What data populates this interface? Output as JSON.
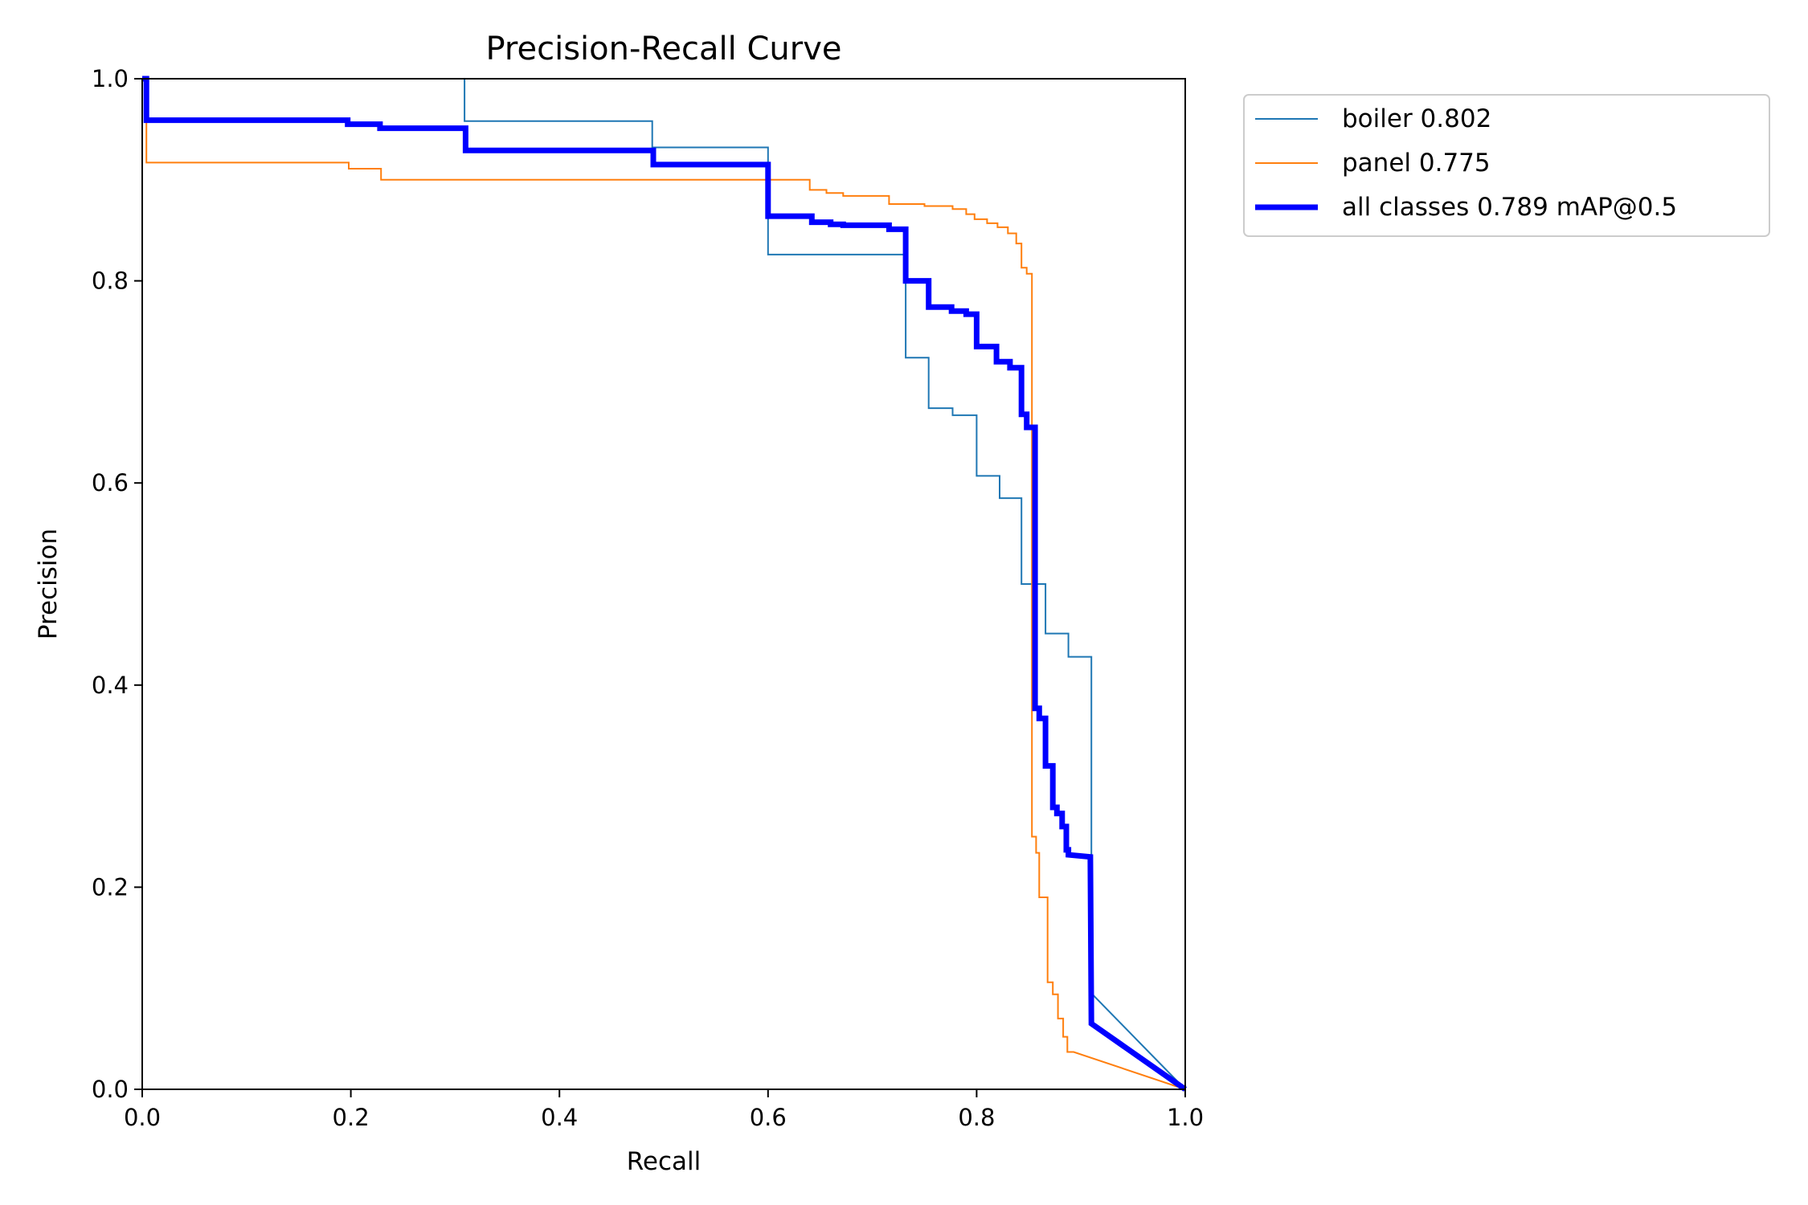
{
  "chart_data": {
    "type": "line",
    "title": "Precision-Recall Curve",
    "xlabel": "Recall",
    "ylabel": "Precision",
    "xlim": [
      0,
      1
    ],
    "ylim": [
      0,
      1
    ],
    "xticks": [
      "0.0",
      "0.2",
      "0.4",
      "0.6",
      "0.8",
      "1.0"
    ],
    "yticks": [
      "0.0",
      "0.2",
      "0.4",
      "0.6",
      "0.8",
      "1.0"
    ],
    "grid": false,
    "legend_position": "outside-top-right",
    "series": [
      {
        "name": "boiler 0.802",
        "color": "#1f77b4",
        "x": [
          0,
          0.309,
          0.309,
          0.489,
          0.489,
          0.6,
          0.6,
          0.732,
          0.732,
          0.754,
          0.754,
          0.777,
          0.777,
          0.8,
          0.8,
          0.822,
          0.822,
          0.843,
          0.843,
          0.866,
          0.866,
          0.888,
          0.888,
          0.91,
          0.91,
          1
        ],
        "y": [
          1,
          1,
          0.958,
          0.958,
          0.932,
          0.932,
          0.826,
          0.826,
          0.724,
          0.724,
          0.674,
          0.674,
          0.667,
          0.667,
          0.607,
          0.607,
          0.585,
          0.585,
          0.5,
          0.5,
          0.451,
          0.451,
          0.428,
          0.428,
          0.095,
          0
        ]
      },
      {
        "name": "panel 0.775",
        "color": "#ff7f0e",
        "x": [
          0,
          0.004,
          0.004,
          0.198,
          0.198,
          0.229,
          0.229,
          0.64,
          0.64,
          0.656,
          0.656,
          0.672,
          0.672,
          0.716,
          0.716,
          0.75,
          0.75,
          0.777,
          0.777,
          0.79,
          0.79,
          0.798,
          0.798,
          0.81,
          0.81,
          0.82,
          0.82,
          0.83,
          0.83,
          0.838,
          0.838,
          0.843,
          0.843,
          0.848,
          0.848,
          0.853,
          0.853,
          0.857,
          0.857,
          0.86,
          0.86,
          0.868,
          0.868,
          0.873,
          0.873,
          0.878,
          0.878,
          0.883,
          0.883,
          0.887,
          0.887,
          0.893,
          1
        ],
        "y": [
          1,
          1,
          0.917,
          0.917,
          0.911,
          0.911,
          0.9,
          0.9,
          0.89,
          0.89,
          0.887,
          0.887,
          0.884,
          0.884,
          0.876,
          0.876,
          0.874,
          0.874,
          0.871,
          0.871,
          0.866,
          0.866,
          0.861,
          0.861,
          0.857,
          0.857,
          0.853,
          0.853,
          0.847,
          0.847,
          0.837,
          0.837,
          0.813,
          0.813,
          0.807,
          0.807,
          0.25,
          0.25,
          0.234,
          0.234,
          0.19,
          0.19,
          0.106,
          0.106,
          0.094,
          0.094,
          0.07,
          0.07,
          0.052,
          0.052,
          0.037,
          0.037,
          0
        ]
      },
      {
        "name": "all classes 0.789 mAP@0.5",
        "color": "#0000ff",
        "x": [
          0,
          0.004,
          0.004,
          0.197,
          0.197,
          0.228,
          0.228,
          0.31,
          0.31,
          0.49,
          0.49,
          0.6,
          0.6,
          0.642,
          0.642,
          0.66,
          0.66,
          0.672,
          0.672,
          0.716,
          0.716,
          0.732,
          0.732,
          0.754,
          0.754,
          0.776,
          0.776,
          0.79,
          0.79,
          0.8,
          0.8,
          0.819,
          0.819,
          0.832,
          0.832,
          0.843,
          0.843,
          0.848,
          0.848,
          0.856,
          0.856,
          0.86,
          0.86,
          0.866,
          0.866,
          0.873,
          0.873,
          0.877,
          0.877,
          0.882,
          0.882,
          0.886,
          0.886,
          0.888,
          0.888,
          0.909,
          0.91,
          1
        ],
        "y": [
          1,
          1,
          0.959,
          0.959,
          0.955,
          0.955,
          0.951,
          0.951,
          0.929,
          0.929,
          0.915,
          0.915,
          0.864,
          0.864,
          0.858,
          0.858,
          0.856,
          0.856,
          0.855,
          0.855,
          0.851,
          0.851,
          0.8,
          0.8,
          0.774,
          0.774,
          0.77,
          0.77,
          0.767,
          0.767,
          0.735,
          0.735,
          0.72,
          0.72,
          0.714,
          0.714,
          0.668,
          0.668,
          0.655,
          0.655,
          0.377,
          0.377,
          0.367,
          0.367,
          0.32,
          0.32,
          0.279,
          0.279,
          0.273,
          0.273,
          0.26,
          0.26,
          0.237,
          0.237,
          0.232,
          0.23,
          0.065,
          0
        ]
      }
    ]
  }
}
